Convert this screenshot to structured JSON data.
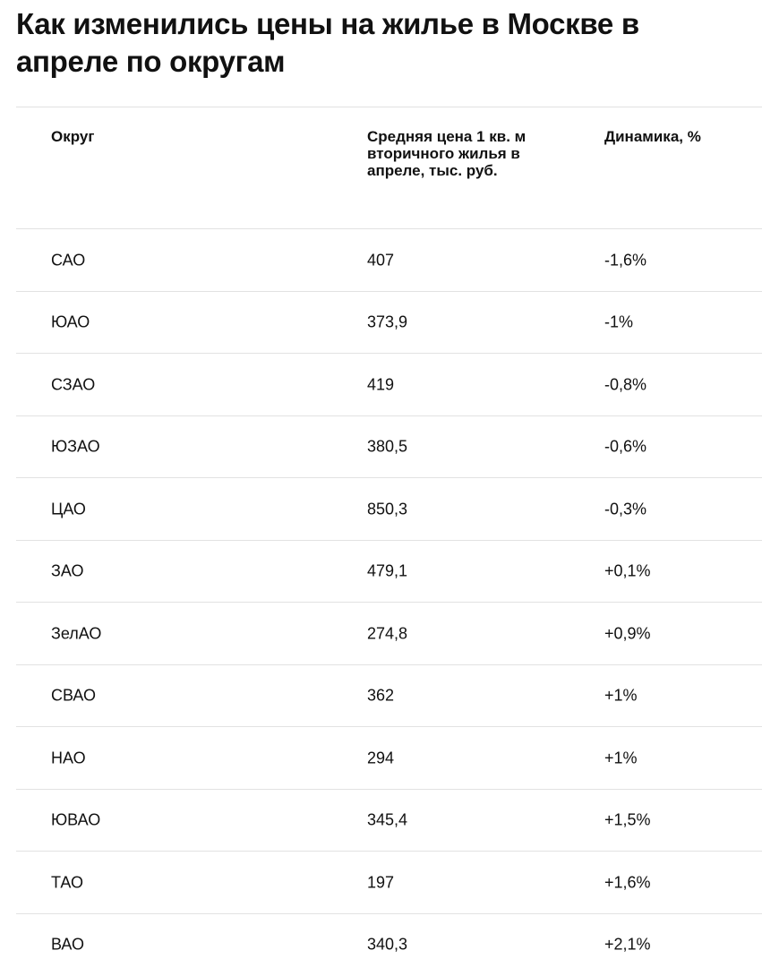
{
  "header": {
    "title": "Как изменились цены на жилье в Москве в апреле по округам"
  },
  "table": {
    "columns": [
      "Округ",
      "Средняя цена 1 кв. м вторичного жилья в апреле, тыс. руб.",
      "Динамика, %"
    ],
    "rows": [
      [
        "САО",
        "407",
        "-1,6%"
      ],
      [
        "ЮАО",
        "373,9",
        "-1%"
      ],
      [
        "СЗАО",
        "419",
        "-0,8%"
      ],
      [
        "ЮЗАО",
        "380,5",
        "-0,6%"
      ],
      [
        "ЦАО",
        "850,3",
        "-0,3%"
      ],
      [
        "ЗАО",
        "479,1",
        "+0,1%"
      ],
      [
        "ЗелАО",
        "274,8",
        "+0,9%"
      ],
      [
        "СВАО",
        "362",
        "+1%"
      ],
      [
        "НАО",
        "294",
        "+1%"
      ],
      [
        "ЮВАО",
        "345,4",
        "+1,5%"
      ],
      [
        "ТАО",
        "197",
        "+1,6%"
      ],
      [
        "ВАО",
        "340,3",
        "+2,1%"
      ]
    ]
  }
}
